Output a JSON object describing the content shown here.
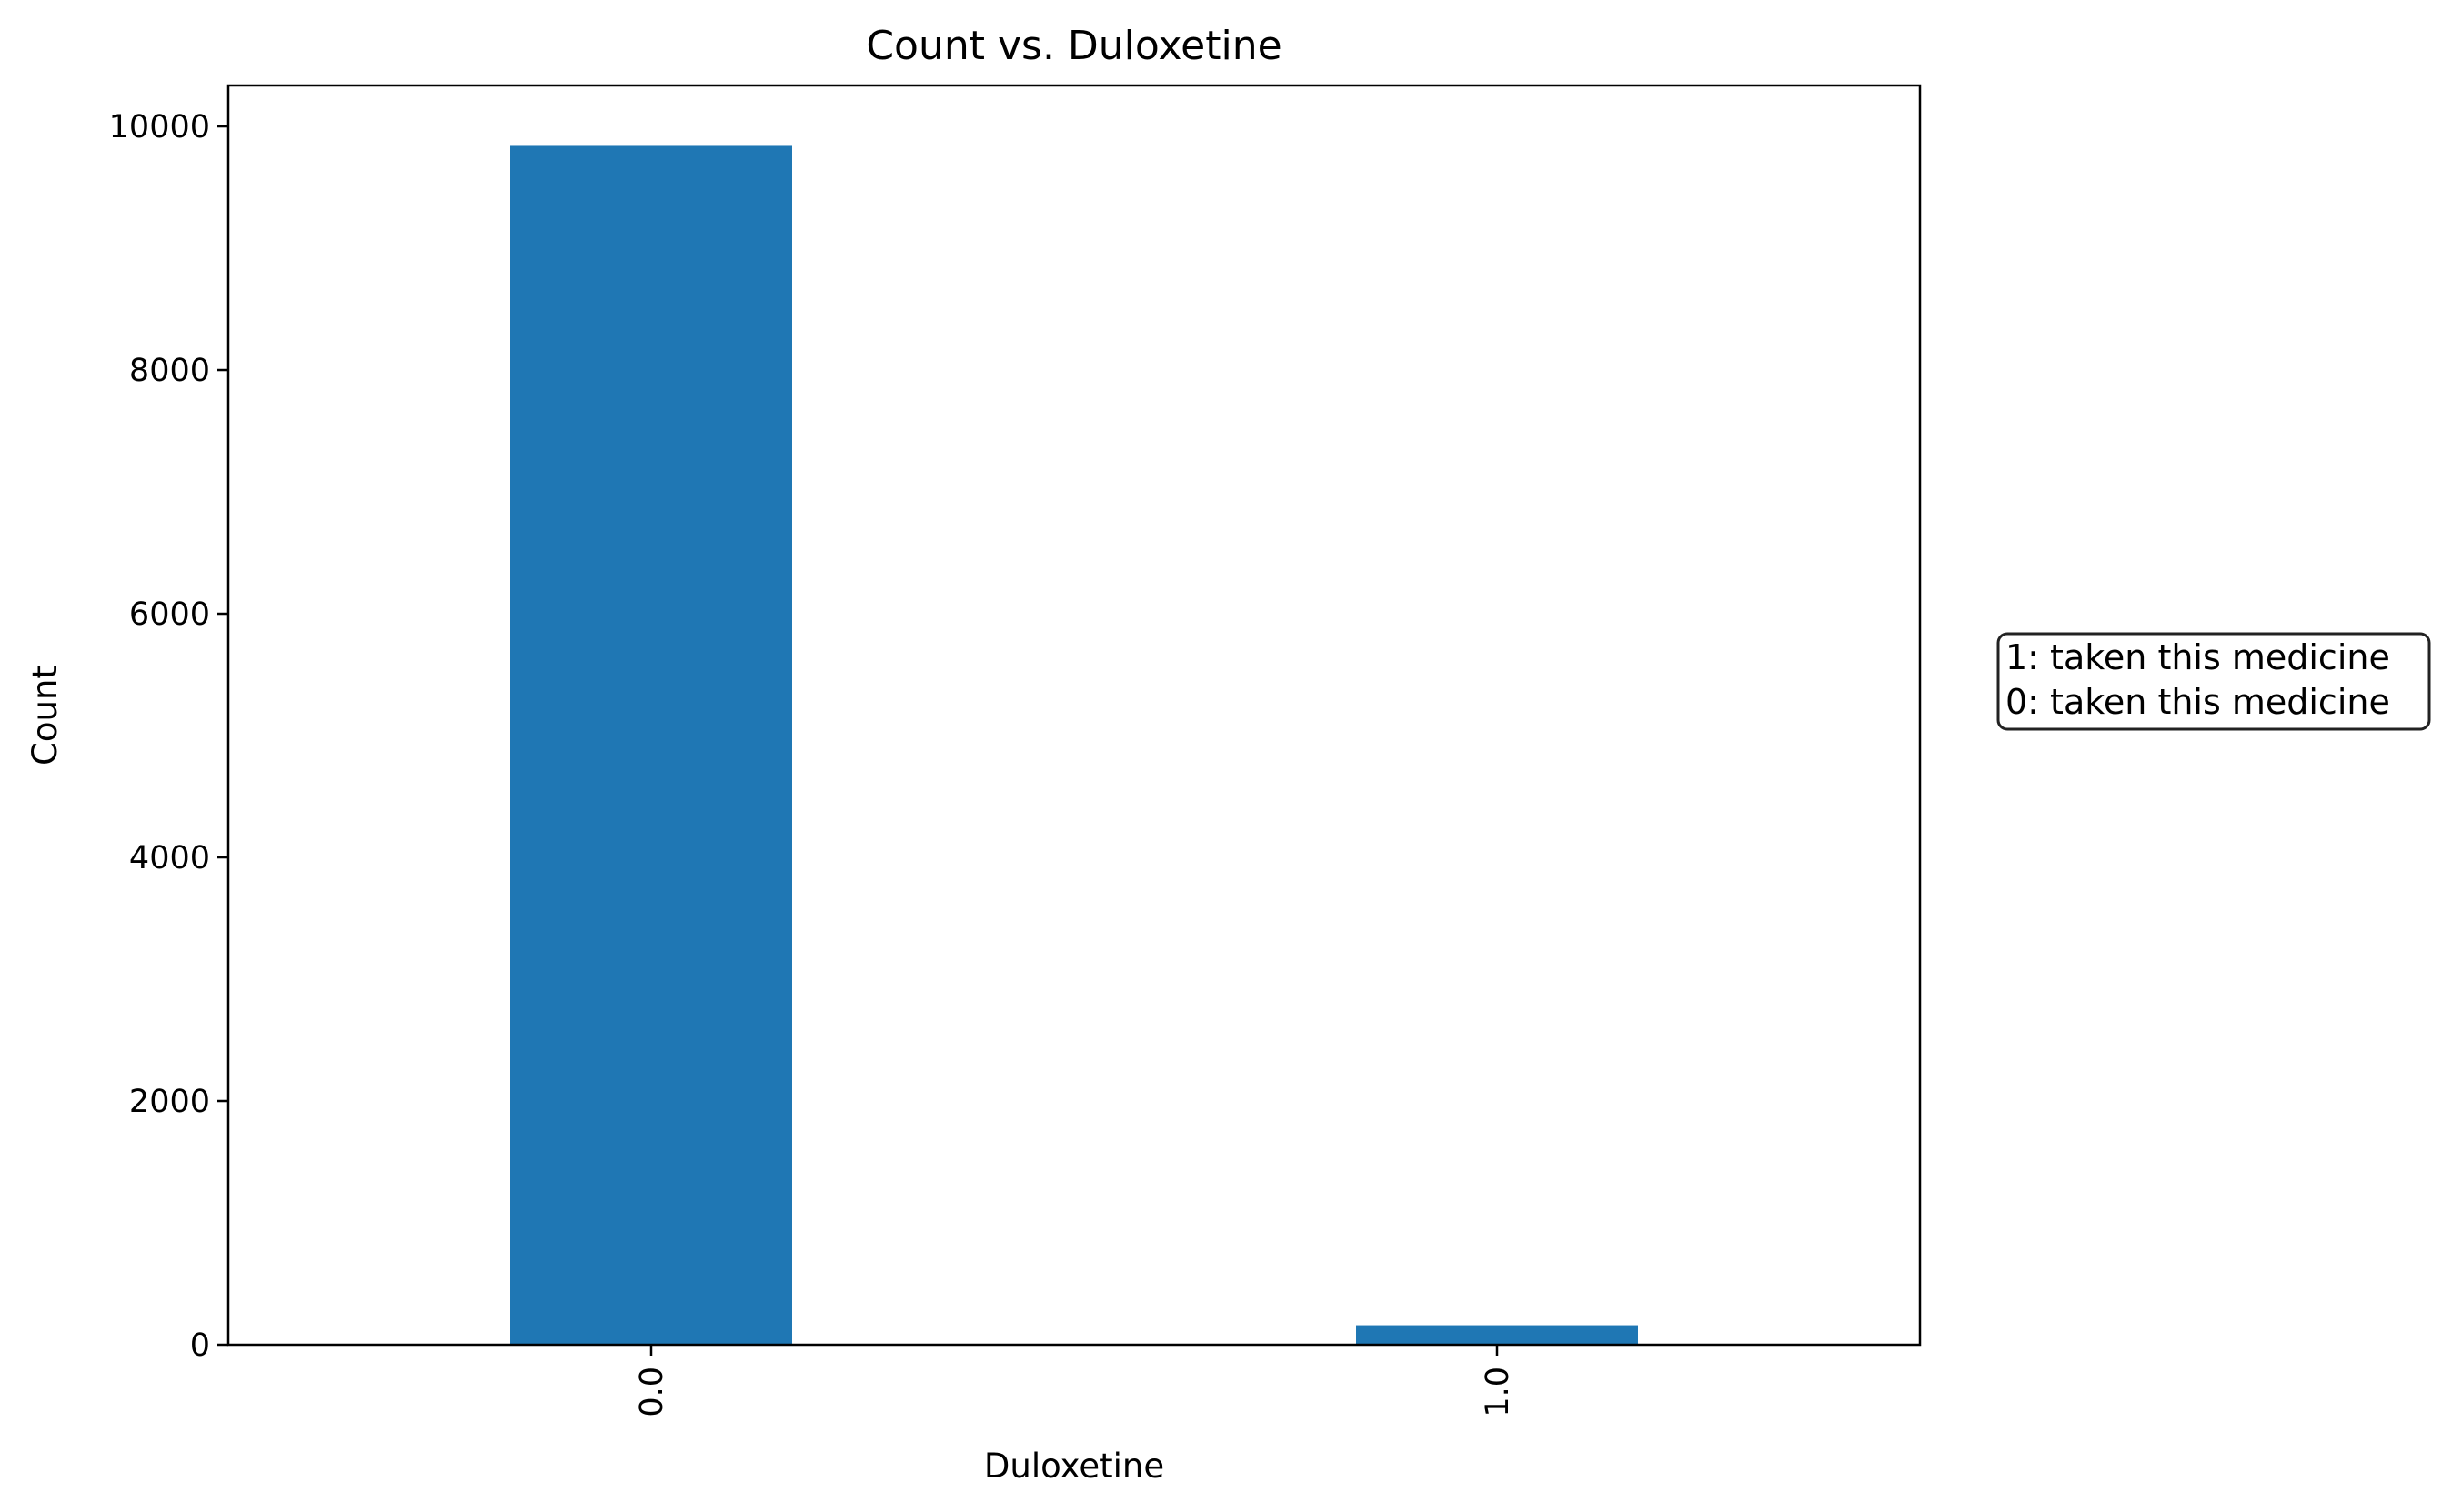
{
  "chart_data": {
    "type": "bar",
    "title": "Count vs. Duloxetine",
    "xlabel": "Duloxetine",
    "ylabel": "Count",
    "categories": [
      "0.0",
      "1.0"
    ],
    "values": [
      9840,
      160
    ],
    "ylim": [
      0,
      10336
    ],
    "yticks": [
      0,
      2000,
      4000,
      6000,
      8000,
      10000
    ],
    "bar_color": "#1f77b4",
    "grid": false,
    "annotation": {
      "lines": [
        "1: taken this medicine",
        "0: taken this medicine"
      ]
    }
  }
}
